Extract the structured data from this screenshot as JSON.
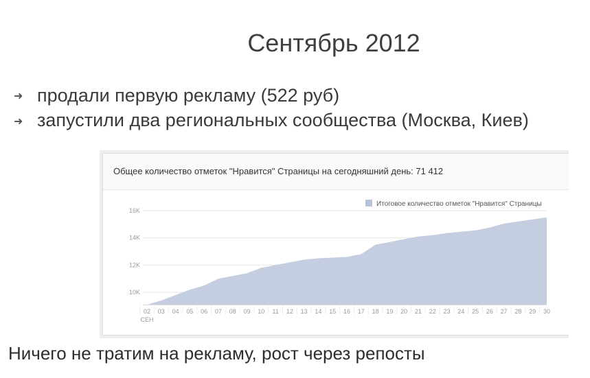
{
  "slide": {
    "title": "Сентябрь 2012",
    "bullets": [
      "продали первую рекламу (522 руб)",
      "запустили два региональных сообщества (Москва, Киев)"
    ],
    "footer": "Ничего не тратим на рекламу, рост через репосты"
  },
  "icons": {
    "bullet": "arrow-right-icon"
  },
  "panel": {
    "header": "Общее количество отметок \"Нравится\" Страницы на сегодняшний день: 71 412"
  },
  "chart_data": {
    "type": "area",
    "legend": {
      "label": "Итоговое количество отметок \"Нравится\" Страницы",
      "position": "top-right"
    },
    "fill_color": "#c5cde0",
    "legend_color": "#b8c2da",
    "grid": true,
    "month_label": "СЕН",
    "x": [
      "02",
      "03",
      "04",
      "05",
      "06",
      "07",
      "08",
      "09",
      "10",
      "11",
      "12",
      "13",
      "14",
      "15",
      "16",
      "17",
      "18",
      "19",
      "20",
      "21",
      "22",
      "23",
      "24",
      "25",
      "26",
      "27",
      "28",
      "29",
      "30"
    ],
    "values": [
      9100,
      9400,
      9800,
      10200,
      10500,
      11000,
      11200,
      11400,
      11800,
      12000,
      12200,
      12400,
      12500,
      12550,
      12600,
      12800,
      13500,
      13700,
      13900,
      14100,
      14200,
      14350,
      14450,
      14550,
      14750,
      15050,
      15200,
      15350,
      15500
    ],
    "y_ticks": [
      10000,
      12000,
      14000,
      16000
    ],
    "y_tick_labels": [
      "10K",
      "12K",
      "14K",
      "16K"
    ],
    "ylim": [
      9100,
      16000
    ]
  }
}
